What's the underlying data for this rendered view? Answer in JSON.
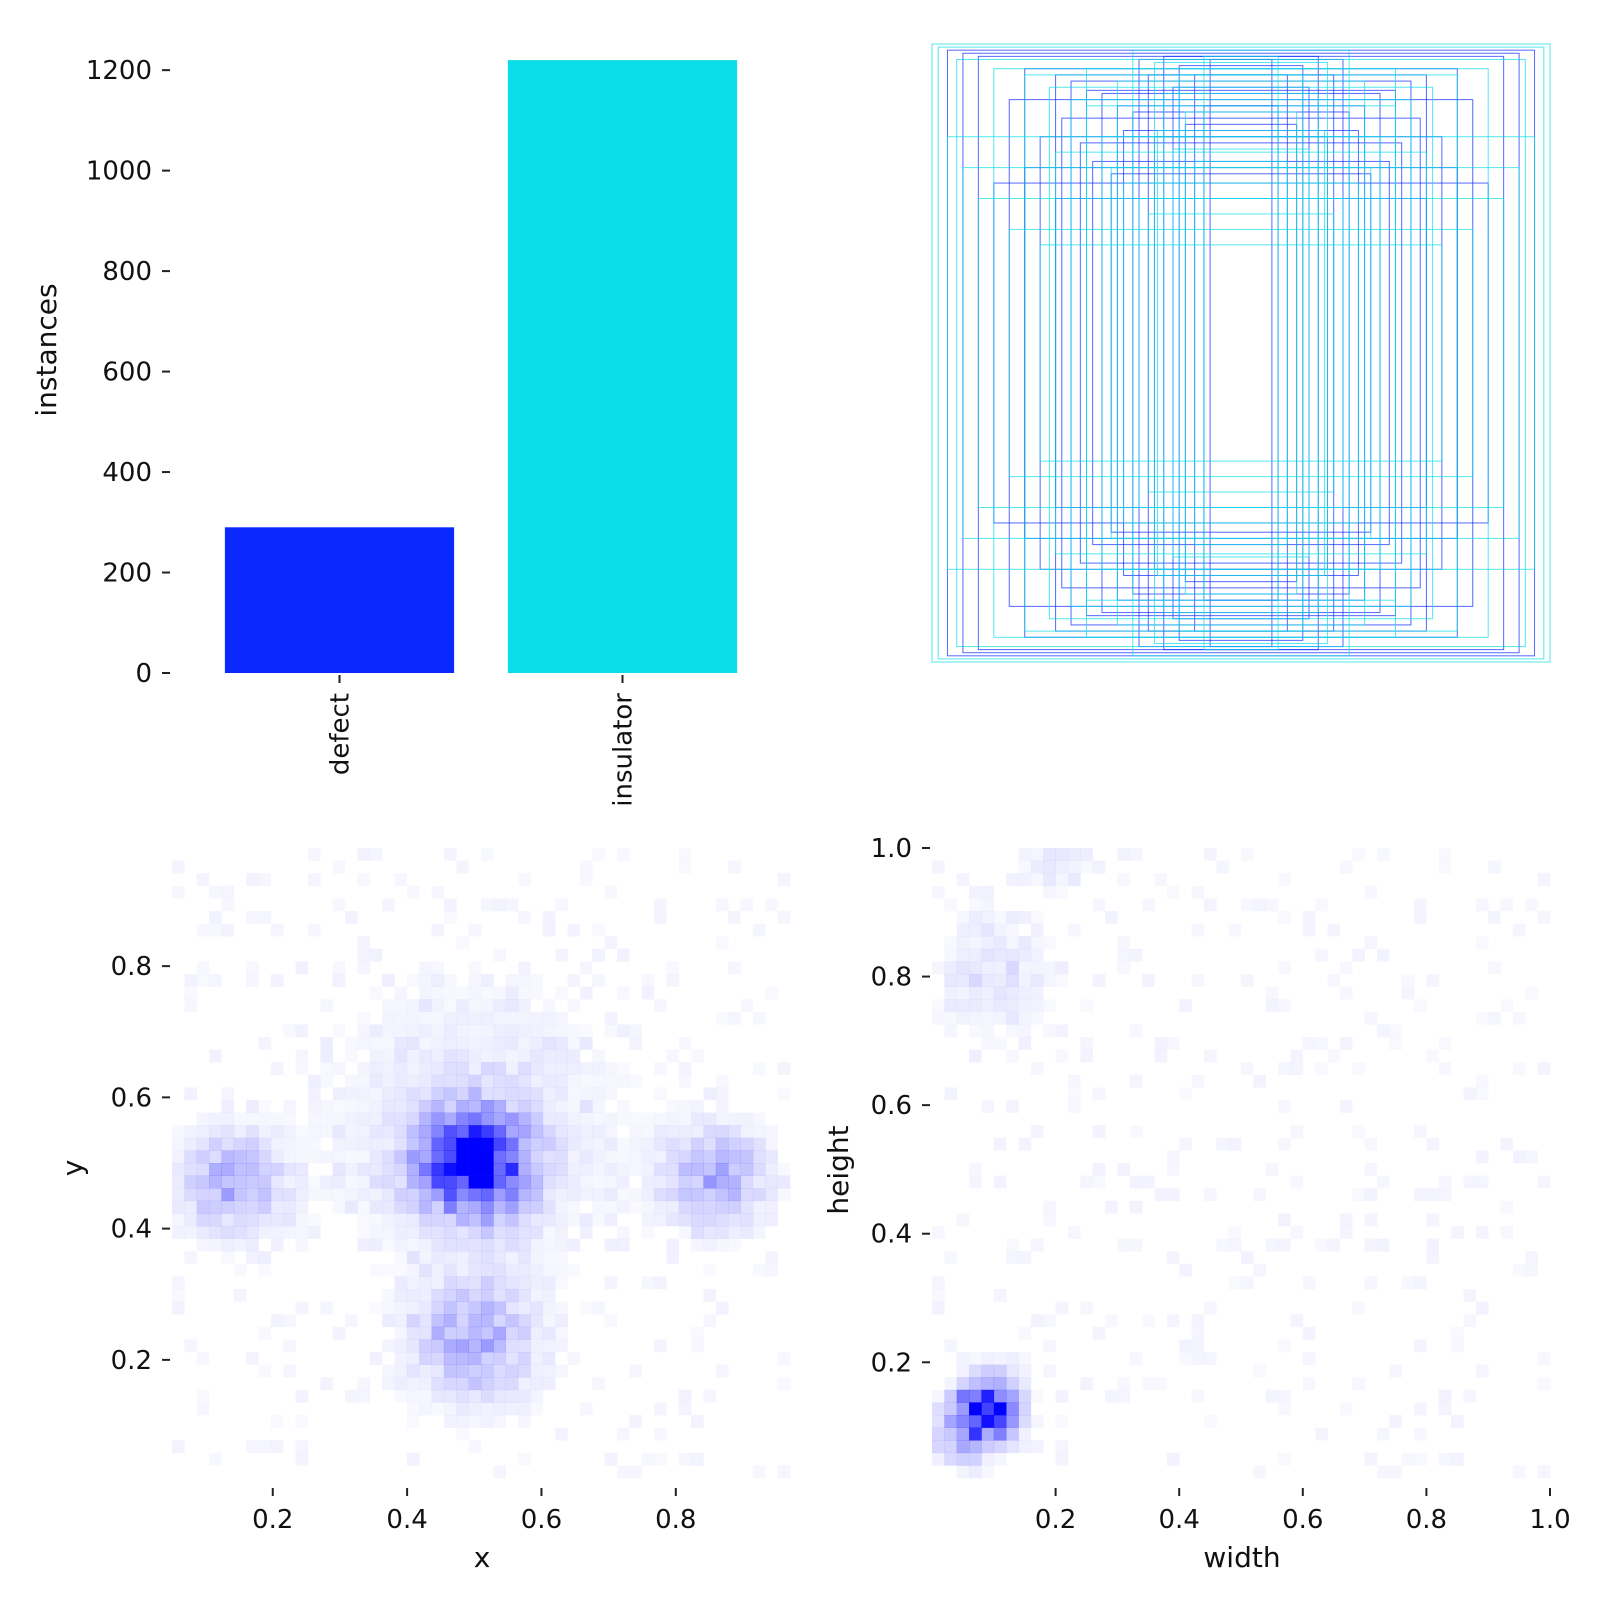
{
  "colors": {
    "defect": "#0b28ff",
    "insulator": "#0adde8",
    "heat": "#0000ff",
    "tick": "#222222",
    "text": "#111111"
  },
  "chart_data": [
    {
      "id": "class-counts",
      "type": "bar",
      "categories": [
        "defect",
        "insulator"
      ],
      "values": [
        290,
        1220
      ],
      "ylabel": "instances",
      "xlabel": "",
      "ylim": [
        0,
        1260
      ],
      "yticks": [
        0,
        200,
        400,
        600,
        800,
        1000,
        1200
      ],
      "ytick_labels": [
        "0",
        "200",
        "400",
        "600",
        "800",
        "1000",
        "1200"
      ]
    },
    {
      "id": "box-overlay",
      "type": "scatter",
      "note_kind": "overlaid bounding boxes centered at 0.5,0.5",
      "series": [
        {
          "name": "defect",
          "boxes_wh": [
            [
              0.95,
              0.98
            ],
            [
              0.9,
              0.97
            ],
            [
              0.85,
              0.96
            ],
            [
              0.7,
              0.92
            ],
            [
              0.6,
              0.9
            ],
            [
              0.55,
              0.88
            ],
            [
              0.5,
              0.85
            ],
            [
              0.45,
              0.84
            ],
            [
              0.4,
              0.8
            ],
            [
              0.35,
              0.78
            ],
            [
              0.33,
              0.95
            ],
            [
              0.3,
              0.9
            ],
            [
              0.28,
              0.7
            ],
            [
              0.25,
              0.96
            ],
            [
              0.22,
              0.86
            ],
            [
              0.2,
              0.93
            ],
            [
              0.18,
              0.74
            ],
            [
              0.15,
              0.9
            ],
            [
              0.12,
              0.8
            ],
            [
              0.1,
              0.95
            ],
            [
              0.6,
              0.5
            ],
            [
              0.7,
              0.6
            ],
            [
              0.8,
              0.55
            ],
            [
              0.65,
              0.7
            ],
            [
              0.75,
              0.82
            ],
            [
              0.48,
              0.62
            ],
            [
              0.52,
              0.68
            ],
            [
              0.42,
              0.58
            ],
            [
              0.38,
              0.72
            ],
            [
              0.58,
              0.76
            ]
          ]
        },
        {
          "name": "insulator",
          "boxes_wh": [
            [
              1.0,
              1.0
            ],
            [
              0.98,
              0.99
            ],
            [
              0.92,
              0.95
            ],
            [
              0.8,
              0.92
            ],
            [
              0.7,
              0.9
            ],
            [
              0.62,
              0.86
            ],
            [
              0.55,
              0.82
            ],
            [
              0.5,
              0.8
            ],
            [
              0.45,
              0.7
            ],
            [
              0.42,
              0.6
            ],
            [
              0.38,
              0.55
            ],
            [
              0.33,
              0.5
            ],
            [
              0.3,
              0.45
            ],
            [
              0.27,
              0.72
            ],
            [
              0.25,
              0.84
            ],
            [
              0.22,
              0.66
            ],
            [
              0.2,
              0.9
            ],
            [
              0.18,
              0.78
            ],
            [
              0.15,
              0.62
            ],
            [
              0.12,
              0.96
            ],
            [
              0.9,
              0.6
            ],
            [
              0.95,
              0.7
            ],
            [
              0.85,
              0.5
            ],
            [
              0.75,
              0.4
            ],
            [
              0.65,
              0.35
            ],
            [
              0.6,
              0.65
            ],
            [
              0.5,
              0.92
            ],
            [
              0.4,
              0.88
            ],
            [
              0.35,
              0.98
            ],
            [
              0.28,
              0.94
            ]
          ]
        }
      ]
    },
    {
      "id": "xy-hist",
      "type": "heatmap",
      "xlabel": "x",
      "ylabel": "y",
      "xlim": [
        0.05,
        0.97
      ],
      "ylim": [
        0.02,
        0.98
      ],
      "xticks": [
        0.2,
        0.4,
        0.6,
        0.8
      ],
      "xtick_labels": [
        "0.2",
        "0.4",
        "0.6",
        "0.8"
      ],
      "yticks": [
        0.2,
        0.4,
        0.6,
        0.8
      ],
      "ytick_labels": [
        "0.2",
        "0.4",
        "0.6",
        "0.8"
      ],
      "clusters": [
        {
          "x": 0.5,
          "y": 0.5,
          "spread": 0.05,
          "peak": 1.0
        },
        {
          "x": 0.14,
          "y": 0.47,
          "spread": 0.05,
          "peak": 0.3
        },
        {
          "x": 0.86,
          "y": 0.48,
          "spread": 0.05,
          "peak": 0.3
        },
        {
          "x": 0.5,
          "y": 0.23,
          "spread": 0.06,
          "peak": 0.3
        },
        {
          "x": 0.5,
          "y": 0.55,
          "spread": 0.14,
          "peak": 0.1
        }
      ]
    },
    {
      "id": "wh-hist",
      "type": "heatmap",
      "xlabel": "width",
      "ylabel": "height",
      "xlim": [
        0.0,
        1.0
      ],
      "ylim": [
        0.02,
        1.0
      ],
      "xticks": [
        0.2,
        0.4,
        0.6,
        0.8,
        1.0
      ],
      "xtick_labels": [
        "0.2",
        "0.4",
        "0.6",
        "0.8",
        "1.0"
      ],
      "yticks": [
        0.2,
        0.4,
        0.6,
        0.8,
        1.0
      ],
      "ytick_labels": [
        "0.2",
        "0.4",
        "0.6",
        "0.8",
        "1.0"
      ],
      "clusters": [
        {
          "x": 0.09,
          "y": 0.13,
          "spread": 0.03,
          "peak": 1.0
        },
        {
          "x": 0.05,
          "y": 0.09,
          "spread": 0.03,
          "peak": 0.35
        },
        {
          "x": 0.1,
          "y": 0.8,
          "spread": 0.06,
          "peak": 0.1
        },
        {
          "x": 0.2,
          "y": 0.99,
          "spread": 0.04,
          "peak": 0.08
        }
      ]
    }
  ]
}
